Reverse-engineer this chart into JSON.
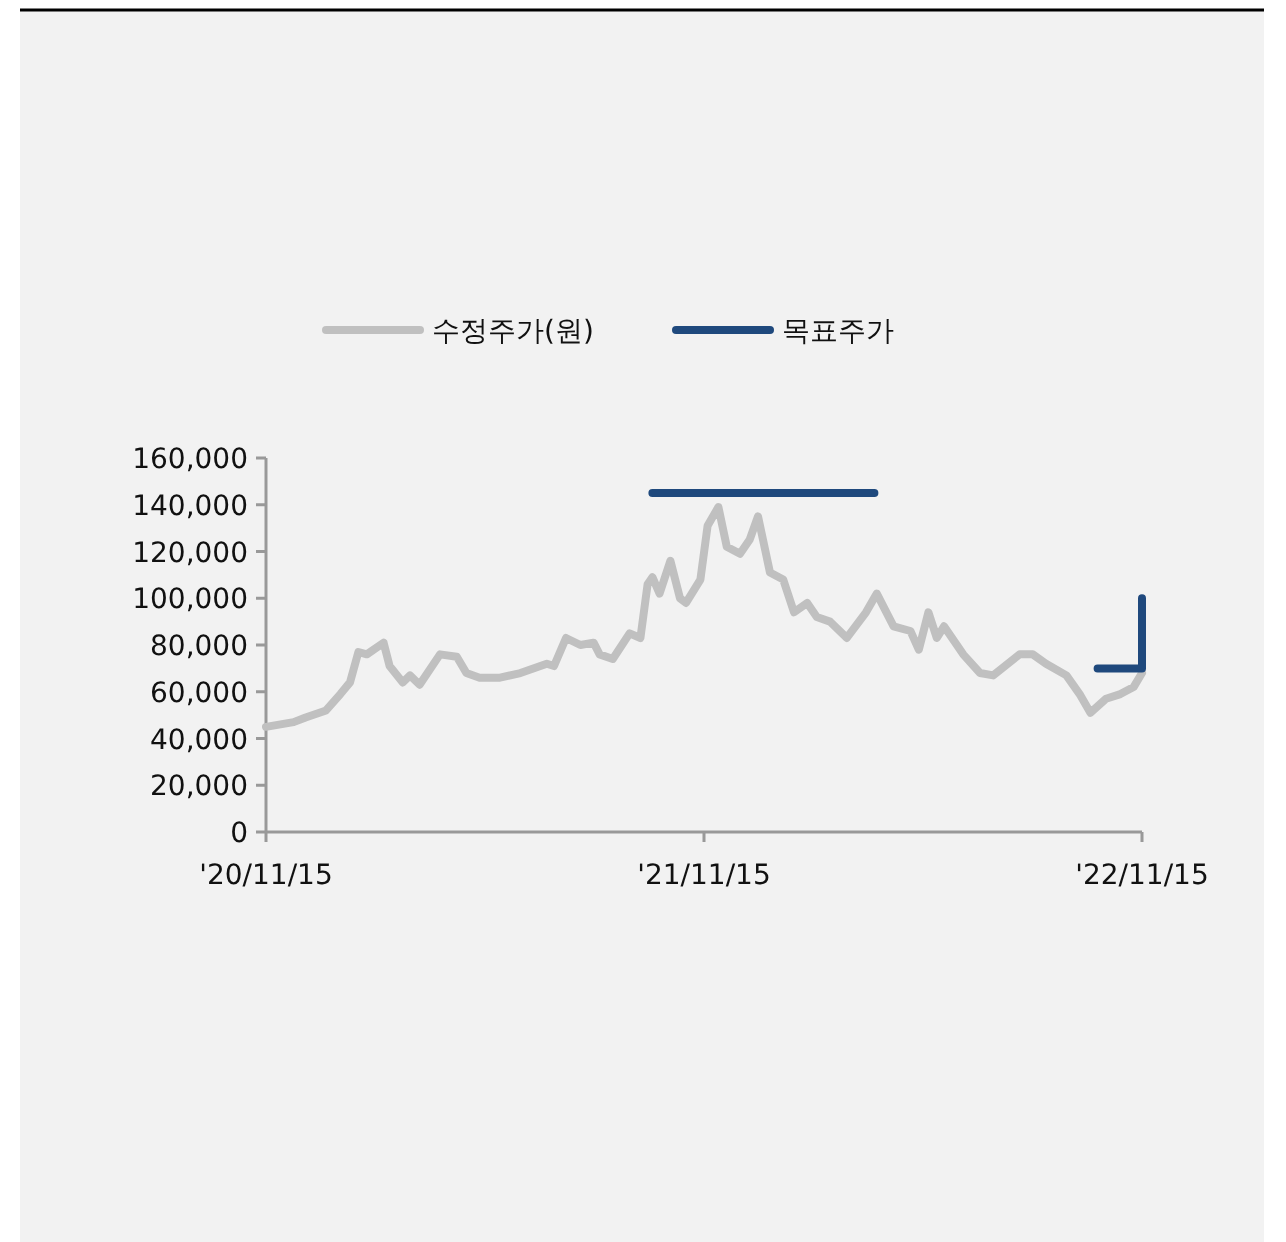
{
  "chart_data": {
    "type": "line",
    "legend": "top",
    "grid": false,
    "line_style": "solid",
    "xlim": [
      "2020-11-15",
      "2022-11-15"
    ],
    "xticks": [
      {
        "value": "2020-11-15",
        "label": "'20/11/15"
      },
      {
        "value": "2021-11-15",
        "label": "'21/11/15"
      },
      {
        "value": "2022-11-15",
        "label": "'22/11/15"
      }
    ],
    "ylim": [
      0,
      160000
    ],
    "yticks": [
      {
        "value": 0,
        "label": "0"
      },
      {
        "value": 20000,
        "label": "20,000"
      },
      {
        "value": 40000,
        "label": "40,000"
      },
      {
        "value": 60000,
        "label": "60,000"
      },
      {
        "value": 80000,
        "label": "80,000"
      },
      {
        "value": 100000,
        "label": "100,000"
      },
      {
        "value": 120000,
        "label": "120,000"
      },
      {
        "value": 140000,
        "label": "140,000"
      },
      {
        "value": 160000,
        "label": "160,000"
      }
    ],
    "series": [
      {
        "name": "수정주가(원)",
        "color": "#c0c0c0",
        "x": [
          "2020-11-15",
          "2020-12-08",
          "2020-12-18",
          "2021-01-04",
          "2021-01-16",
          "2021-01-24",
          "2021-01-31",
          "2021-02-07",
          "2021-02-21",
          "2021-02-26",
          "2021-03-09",
          "2021-03-15",
          "2021-03-23",
          "2021-04-09",
          "2021-04-23",
          "2021-05-01",
          "2021-05-12",
          "2021-05-29",
          "2021-06-15",
          "2021-07-07",
          "2021-07-13",
          "2021-07-23",
          "2021-08-04",
          "2021-08-15",
          "2021-08-20",
          "2021-08-31",
          "2021-09-14",
          "2021-09-23",
          "2021-09-29",
          "2021-10-03",
          "2021-10-09",
          "2021-10-18",
          "2021-10-26",
          "2021-10-31",
          "2021-11-12",
          "2021-11-18",
          "2021-11-27",
          "2021-12-04",
          "2021-12-15",
          "2021-12-23",
          "2021-12-30",
          "2022-01-09",
          "2022-01-20",
          "2022-01-29",
          "2022-02-09",
          "2022-02-17",
          "2022-02-28",
          "2022-03-14",
          "2022-03-30",
          "2022-04-08",
          "2022-04-22",
          "2022-05-06",
          "2022-05-13",
          "2022-05-21",
          "2022-05-28",
          "2022-06-03",
          "2022-06-19",
          "2022-07-03",
          "2022-07-14",
          "2022-08-05",
          "2022-08-16",
          "2022-08-27",
          "2022-09-13",
          "2022-09-24",
          "2022-10-03",
          "2022-10-16",
          "2022-10-28",
          "2022-11-08",
          "2022-11-15"
        ],
        "values": [
          45000,
          47000,
          49000,
          52000,
          59000,
          64000,
          77000,
          76000,
          81000,
          71000,
          64000,
          67000,
          63000,
          76000,
          75000,
          68000,
          66000,
          66000,
          68000,
          72000,
          71000,
          83000,
          80000,
          81000,
          76000,
          74000,
          85000,
          83000,
          106000,
          109000,
          102000,
          116000,
          100000,
          98000,
          108000,
          131000,
          139000,
          122000,
          119000,
          125000,
          135000,
          111000,
          108000,
          94000,
          98000,
          92000,
          90000,
          83000,
          94000,
          102000,
          88000,
          86000,
          78000,
          94000,
          83000,
          88000,
          76000,
          68000,
          67000,
          76000,
          76000,
          72000,
          67000,
          59000,
          51000,
          57000,
          59000,
          62000,
          68000
        ]
      },
      {
        "name": "목표주가",
        "color": "#1f497d",
        "x": [
          "2021-10-03",
          "2022-04-06"
        ],
        "values": [
          145000,
          145000
        ]
      },
      {
        "color": "#1f497d",
        "x": [
          "2022-10-09",
          "2022-11-15",
          "2022-11-15"
        ],
        "values": [
          70000,
          70000,
          100000
        ]
      }
    ]
  }
}
